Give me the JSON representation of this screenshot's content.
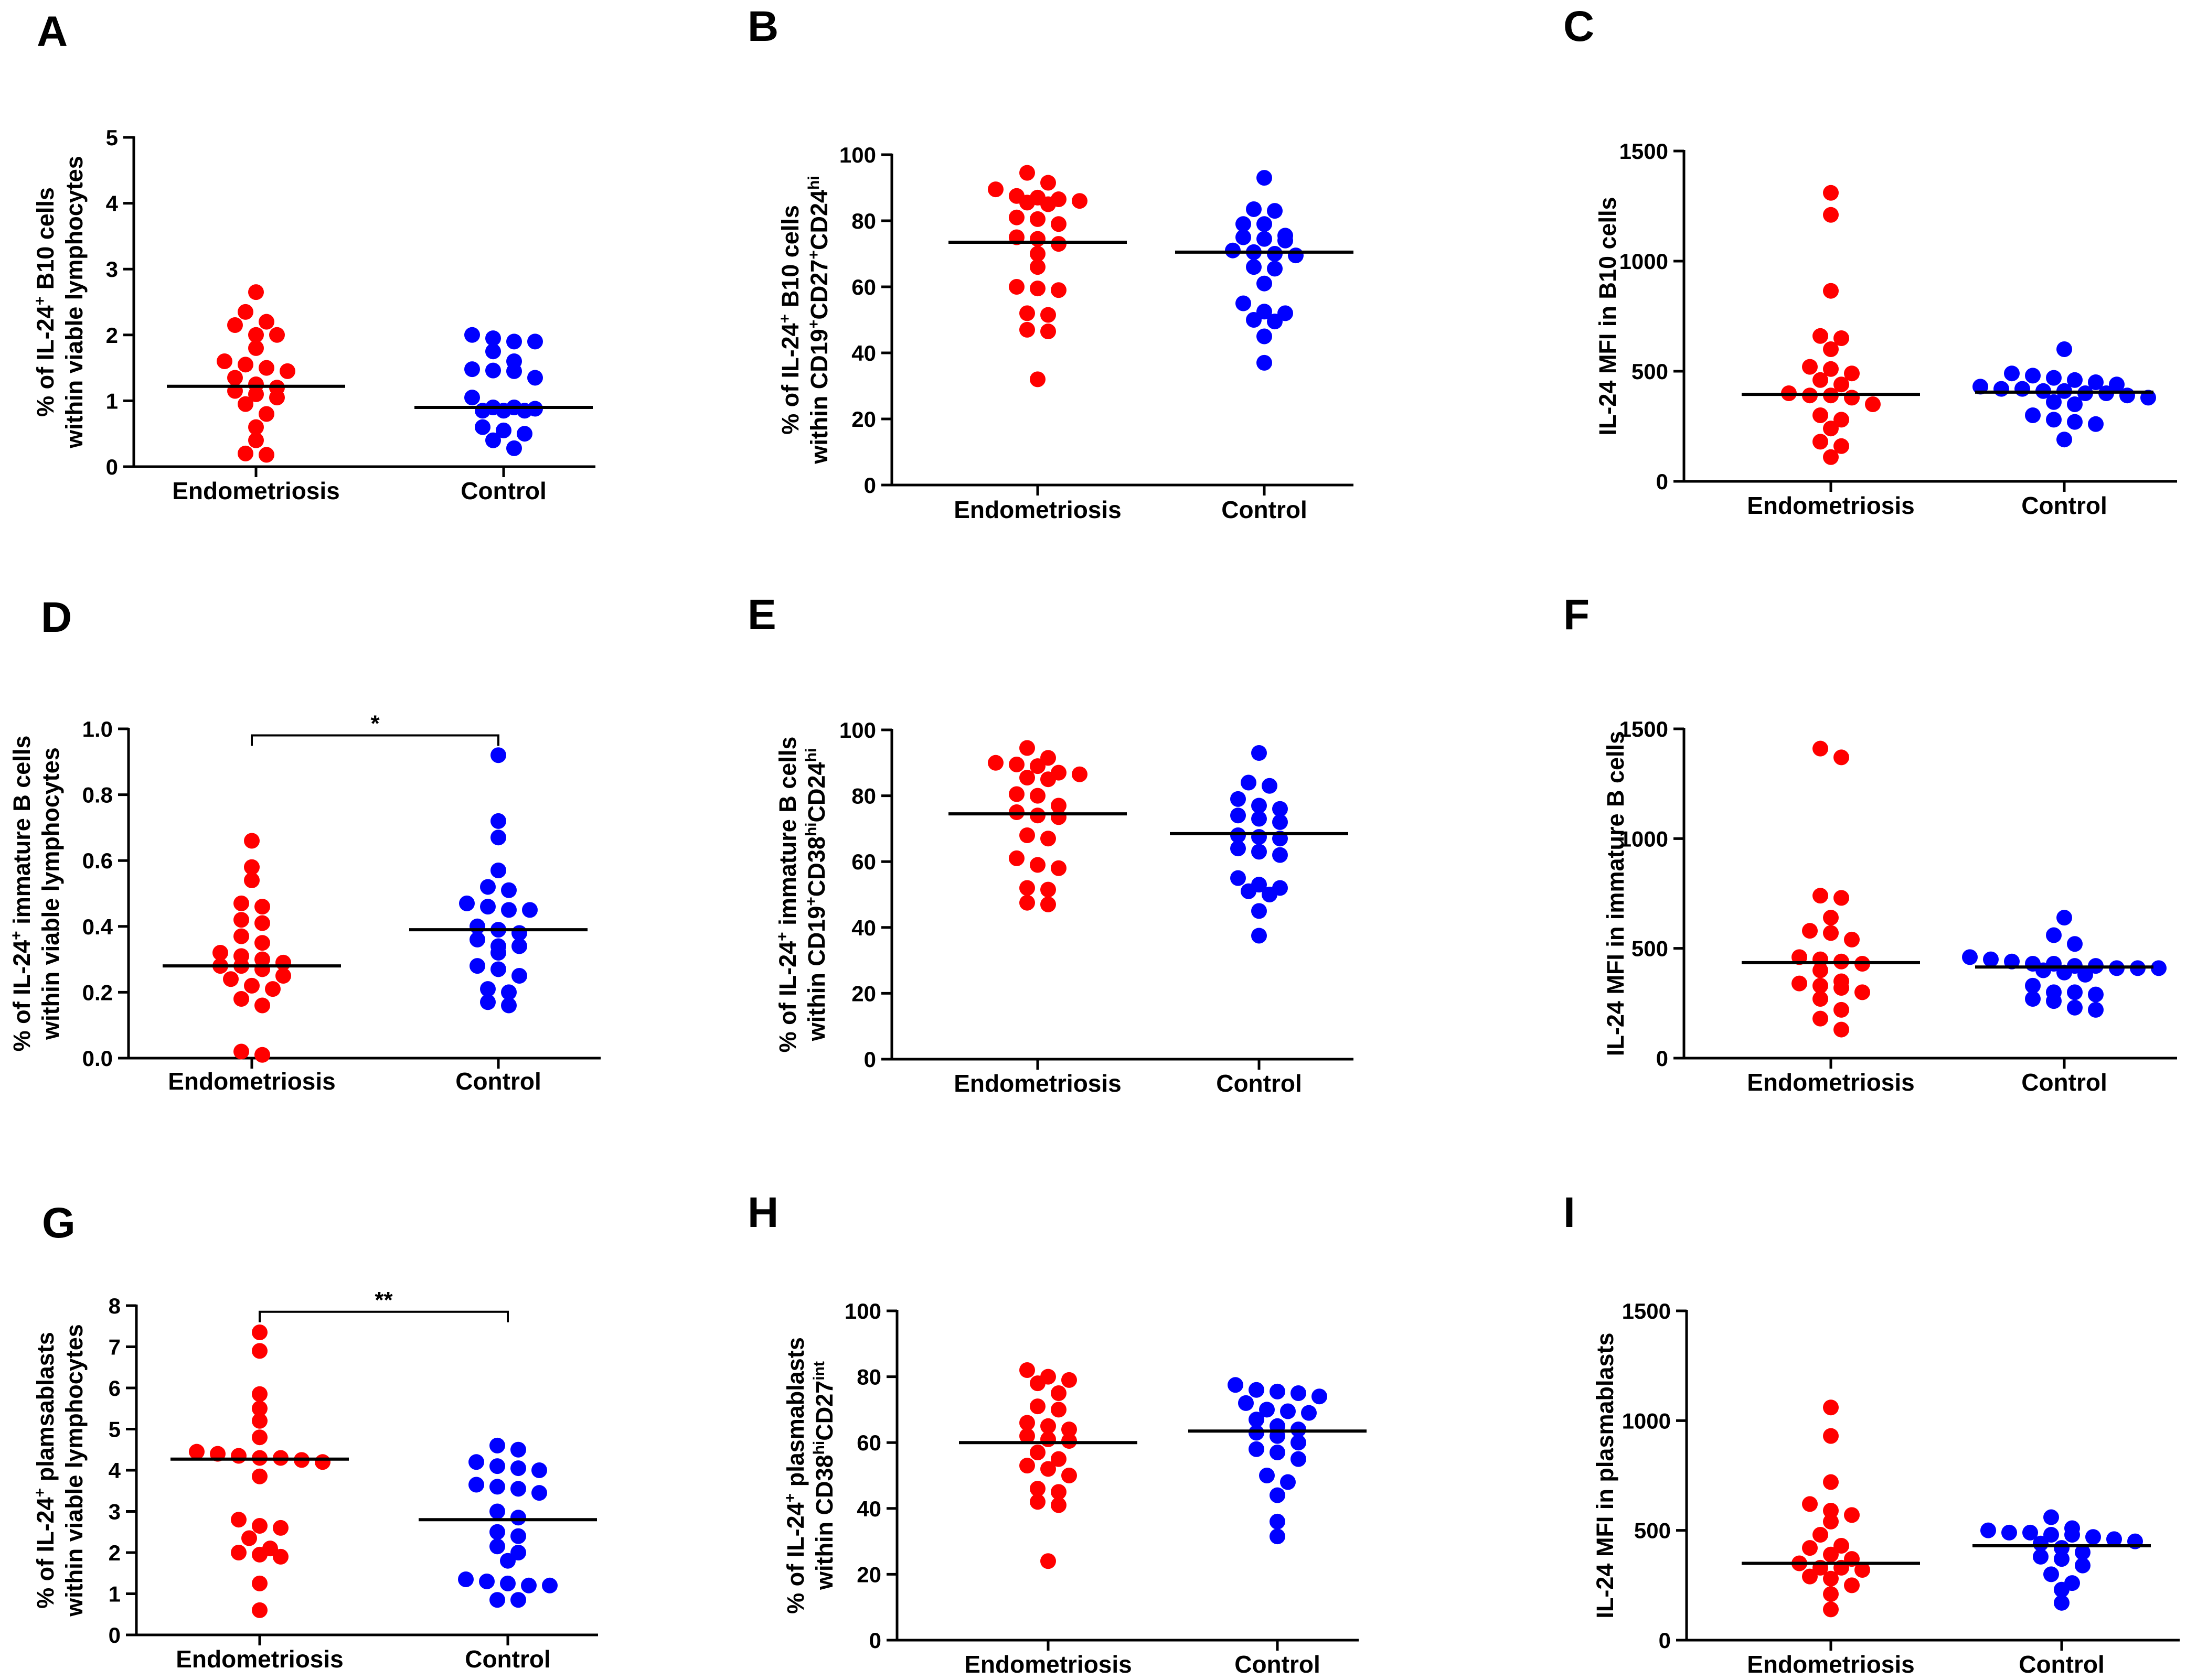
{
  "figure": {
    "background": "#ffffff"
  },
  "chart_data": [
    {
      "type": "scatter",
      "panel": "A",
      "ylabel_lines": [
        [
          {
            "t": "% of IL-24"
          },
          {
            "t": "+",
            "s": "sup"
          },
          {
            "t": " B10 cells"
          }
        ],
        [
          {
            "t": "within viable lymphocytes"
          }
        ]
      ],
      "ylim": [
        0,
        5
      ],
      "yticks": [
        0,
        1,
        2,
        3,
        4,
        5
      ],
      "ytick_labels": [
        "0",
        "1",
        "2",
        "3",
        "4",
        "5"
      ],
      "categories": [
        "Endometriosis",
        "Control"
      ],
      "series": [
        {
          "name": "Endometriosis",
          "color": "#ff0000",
          "median": 1.22,
          "values": [
            2.65,
            2.35,
            2.2,
            2.15,
            2.0,
            2.0,
            1.8,
            1.6,
            1.55,
            1.5,
            1.45,
            1.35,
            1.25,
            1.2,
            1.15,
            1.1,
            1.05,
            0.95,
            0.8,
            0.6,
            0.4,
            0.2,
            0.18
          ]
        },
        {
          "name": "Control",
          "color": "#0000ff",
          "median": 0.9,
          "values": [
            2.0,
            1.95,
            1.9,
            1.9,
            1.75,
            1.6,
            1.48,
            1.46,
            1.45,
            1.35,
            1.05,
            0.9,
            0.9,
            0.88,
            0.85,
            0.85,
            0.85,
            0.6,
            0.55,
            0.5,
            0.4,
            0.28
          ]
        }
      ],
      "significance": null
    },
    {
      "type": "scatter",
      "panel": "B",
      "ylabel_lines": [
        [
          {
            "t": "% of IL-24"
          },
          {
            "t": "+",
            "s": "sup"
          },
          {
            "t": " B10 cells"
          }
        ],
        [
          {
            "t": "within CD19"
          },
          {
            "t": "+",
            "s": "sup"
          },
          {
            "t": "CD27"
          },
          {
            "t": "+",
            "s": "sup"
          },
          {
            "t": "CD24"
          },
          {
            "t": "hi",
            "s": "sup"
          }
        ]
      ],
      "ylim": [
        0,
        100
      ],
      "yticks": [
        0,
        20,
        40,
        60,
        80,
        100
      ],
      "ytick_labels": [
        "0",
        "20",
        "40",
        "60",
        "80",
        "100"
      ],
      "categories": [
        "Endometriosis",
        "Control"
      ],
      "series": [
        {
          "name": "Endometriosis",
          "color": "#ff0000",
          "median": 73.5,
          "values": [
            94.5,
            91.5,
            89.5,
            87.5,
            87.0,
            86.5,
            86.0,
            85.5,
            85.0,
            81.0,
            80.5,
            79.0,
            75.0,
            74.5,
            73.0,
            70.0,
            66.0,
            60.0,
            59.5,
            59.0,
            52.0,
            51.5,
            47.0,
            46.5,
            32.0
          ]
        },
        {
          "name": "Control",
          "color": "#0000ff",
          "median": 70.5,
          "values": [
            93.0,
            83.5,
            83.0,
            79.0,
            79.0,
            75.5,
            75.0,
            74.5,
            74.0,
            71.0,
            70.5,
            70.0,
            69.5,
            66.0,
            65.5,
            61.0,
            55.0,
            52.5,
            52.0,
            50.0,
            49.5,
            45.0,
            37.0
          ]
        }
      ],
      "significance": null
    },
    {
      "type": "scatter",
      "panel": "C",
      "ylabel_lines": [
        [
          {
            "t": "IL-24 MFI in B10 cells"
          }
        ]
      ],
      "ylim": [
        0,
        1500
      ],
      "yticks": [
        0,
        500,
        1000,
        1500
      ],
      "ytick_labels": [
        "0",
        "500",
        "1000",
        "1500"
      ],
      "categories": [
        "Endometriosis",
        "Control"
      ],
      "series": [
        {
          "name": "Endometriosis",
          "color": "#ff0000",
          "median": 395,
          "values": [
            1310,
            1210,
            865,
            660,
            650,
            600,
            520,
            510,
            490,
            460,
            440,
            400,
            390,
            390,
            380,
            350,
            300,
            280,
            240,
            180,
            160,
            110
          ]
        },
        {
          "name": "Control",
          "color": "#0000ff",
          "median": 405,
          "values": [
            600,
            490,
            480,
            470,
            460,
            450,
            440,
            430,
            420,
            420,
            410,
            410,
            400,
            400,
            390,
            380,
            360,
            350,
            300,
            280,
            270,
            260,
            190
          ]
        }
      ],
      "significance": null
    },
    {
      "type": "scatter",
      "panel": "D",
      "ylabel_lines": [
        [
          {
            "t": "% of IL-24"
          },
          {
            "t": "+",
            "s": "sup"
          },
          {
            "t": " immature  B cells"
          }
        ],
        [
          {
            "t": "within viable lymphocytes"
          }
        ]
      ],
      "ylim": [
        0,
        1.0
      ],
      "yticks": [
        0,
        0.2,
        0.4,
        0.6,
        0.8,
        1.0
      ],
      "ytick_labels": [
        "0.0",
        "0.2",
        "0.4",
        "0.6",
        "0.8",
        "1.0"
      ],
      "categories": [
        "Endometriosis",
        "Control"
      ],
      "series": [
        {
          "name": "Endometriosis",
          "color": "#ff0000",
          "median": 0.28,
          "values": [
            0.66,
            0.58,
            0.54,
            0.47,
            0.46,
            0.42,
            0.41,
            0.37,
            0.35,
            0.32,
            0.31,
            0.3,
            0.29,
            0.28,
            0.28,
            0.27,
            0.25,
            0.24,
            0.22,
            0.21,
            0.18,
            0.16,
            0.02,
            0.01
          ]
        },
        {
          "name": "Control",
          "color": "#0000ff",
          "median": 0.39,
          "values": [
            0.92,
            0.72,
            0.67,
            0.57,
            0.52,
            0.51,
            0.47,
            0.46,
            0.45,
            0.45,
            0.4,
            0.39,
            0.38,
            0.36,
            0.34,
            0.34,
            0.32,
            0.28,
            0.27,
            0.25,
            0.21,
            0.2,
            0.17,
            0.16
          ]
        }
      ],
      "significance": {
        "label": "*",
        "level": 0.98
      }
    },
    {
      "type": "scatter",
      "panel": "E",
      "ylabel_lines": [
        [
          {
            "t": "% of IL-24"
          },
          {
            "t": "+",
            "s": "sup"
          },
          {
            "t": " immature  B cells"
          }
        ],
        [
          {
            "t": "within CD19"
          },
          {
            "t": "+",
            "s": "sup"
          },
          {
            "t": "CD38"
          },
          {
            "t": "hi",
            "s": "sup"
          },
          {
            "t": "CD24"
          },
          {
            "t": "hi",
            "s": "sup"
          }
        ]
      ],
      "ylim": [
        0,
        100
      ],
      "yticks": [
        0,
        20,
        40,
        60,
        80,
        100
      ],
      "ytick_labels": [
        "0",
        "20",
        "40",
        "60",
        "80",
        "100"
      ],
      "categories": [
        "Endometriosis",
        "Control"
      ],
      "series": [
        {
          "name": "Endometriosis",
          "color": "#ff0000",
          "median": 74.5,
          "values": [
            94.5,
            91.5,
            90.0,
            89.5,
            89.0,
            87.0,
            86.5,
            85.5,
            85.0,
            80.5,
            80.0,
            77.0,
            75.0,
            74.0,
            73.5,
            68.0,
            67.0,
            61.0,
            59.0,
            58.0,
            52.0,
            51.5,
            47.5,
            47.0
          ]
        },
        {
          "name": "Control",
          "color": "#0000ff",
          "median": 68.5,
          "values": [
            93.0,
            84.0,
            83.0,
            79.0,
            77.0,
            76.0,
            74.0,
            73.0,
            72.0,
            68.0,
            67.5,
            67.0,
            64.0,
            63.0,
            62.0,
            55.0,
            53.0,
            52.0,
            51.0,
            50.0,
            45.0,
            37.5
          ]
        }
      ],
      "significance": null
    },
    {
      "type": "scatter",
      "panel": "F",
      "ylabel_lines": [
        [
          {
            "t": "IL-24 MFI in immature  B cells"
          }
        ]
      ],
      "ylim": [
        0,
        1500
      ],
      "yticks": [
        0,
        500,
        1000,
        1500
      ],
      "ytick_labels": [
        "0",
        "500",
        "1000",
        "1500"
      ],
      "categories": [
        "Endometriosis",
        "Control"
      ],
      "series": [
        {
          "name": "Endometriosis",
          "color": "#ff0000",
          "median": 435,
          "values": [
            1410,
            1370,
            740,
            730,
            640,
            580,
            570,
            540,
            460,
            450,
            440,
            430,
            400,
            350,
            340,
            330,
            320,
            300,
            270,
            220,
            180,
            130
          ]
        },
        {
          "name": "Control",
          "color": "#0000ff",
          "median": 415,
          "values": [
            640,
            560,
            520,
            460,
            450,
            440,
            430,
            430,
            420,
            420,
            410,
            410,
            410,
            400,
            390,
            380,
            330,
            300,
            300,
            290,
            270,
            260,
            230,
            220
          ]
        }
      ],
      "significance": null
    },
    {
      "type": "scatter",
      "panel": "G",
      "ylabel_lines": [
        [
          {
            "t": "% of IL-24"
          },
          {
            "t": "+",
            "s": "sup"
          },
          {
            "t": " plamsablasts"
          }
        ],
        [
          {
            "t": "within viable lymphocytes"
          }
        ]
      ],
      "ylim": [
        0,
        8
      ],
      "yticks": [
        0,
        1,
        2,
        3,
        4,
        5,
        6,
        7,
        8
      ],
      "ytick_labels": [
        "0",
        "1",
        "2",
        "3",
        "4",
        "5",
        "6",
        "7",
        "8"
      ],
      "categories": [
        "Endometriosis",
        "Control"
      ],
      "series": [
        {
          "name": "Endometriosis",
          "color": "#ff0000",
          "median": 4.27,
          "values": [
            7.35,
            6.9,
            5.85,
            5.5,
            5.2,
            4.8,
            4.45,
            4.4,
            4.35,
            4.3,
            4.3,
            4.25,
            4.2,
            3.85,
            2.8,
            2.65,
            2.6,
            2.35,
            2.1,
            2.0,
            1.95,
            1.9,
            1.25,
            0.6
          ]
        },
        {
          "name": "Control",
          "color": "#0000ff",
          "median": 2.8,
          "values": [
            4.6,
            4.5,
            4.2,
            4.1,
            4.05,
            4.0,
            3.65,
            3.6,
            3.55,
            3.45,
            3.0,
            2.85,
            2.5,
            2.4,
            2.15,
            2.0,
            1.8,
            1.35,
            1.3,
            1.25,
            1.2,
            1.2,
            0.85,
            0.85
          ]
        }
      ],
      "significance": {
        "label": "**",
        "level": 7.85
      }
    },
    {
      "type": "scatter",
      "panel": "H",
      "ylabel_lines": [
        [
          {
            "t": "% of IL-24"
          },
          {
            "t": "+",
            "s": "sup"
          },
          {
            "t": " plasmablasts"
          }
        ],
        [
          {
            "t": "within CD38"
          },
          {
            "t": "hi",
            "s": "sup"
          },
          {
            "t": "CD27"
          },
          {
            "t": "int",
            "s": "sup"
          }
        ]
      ],
      "ylim": [
        0,
        100
      ],
      "yticks": [
        0,
        20,
        40,
        60,
        80,
        100
      ],
      "ytick_labels": [
        "0",
        "20",
        "40",
        "60",
        "80",
        "100"
      ],
      "categories": [
        "Endometriosis",
        "Control"
      ],
      "series": [
        {
          "name": "Endometriosis",
          "color": "#ff0000",
          "median": 60,
          "values": [
            82.0,
            80.0,
            79.0,
            78.0,
            75.0,
            71.0,
            70.0,
            66.0,
            65.0,
            64.0,
            62.0,
            61.0,
            60.5,
            57.0,
            55.0,
            53.0,
            52.0,
            50.0,
            46.0,
            45.0,
            42.0,
            41.0,
            24.0
          ]
        },
        {
          "name": "Control",
          "color": "#0000ff",
          "median": 63.5,
          "values": [
            77.5,
            76.0,
            75.5,
            75.0,
            74.0,
            72.0,
            70.0,
            69.5,
            69.0,
            67.0,
            65.0,
            64.0,
            63.0,
            62.0,
            60.0,
            58.0,
            57.0,
            55.0,
            50.0,
            48.0,
            44.0,
            36.0,
            31.5
          ]
        }
      ],
      "significance": null
    },
    {
      "type": "scatter",
      "panel": "I",
      "ylabel_lines": [
        [
          {
            "t": "IL-24 MFI in plasmablasts"
          }
        ]
      ],
      "ylim": [
        0,
        1500
      ],
      "yticks": [
        0,
        500,
        1000,
        1500
      ],
      "ytick_labels": [
        "0",
        "500",
        "1000",
        "1500"
      ],
      "categories": [
        "Endometriosis",
        "Control"
      ],
      "series": [
        {
          "name": "Endometriosis",
          "color": "#ff0000",
          "median": 350,
          "values": [
            1060,
            930,
            720,
            620,
            590,
            570,
            540,
            480,
            430,
            420,
            390,
            370,
            350,
            330,
            330,
            320,
            290,
            280,
            250,
            210,
            140
          ]
        },
        {
          "name": "Control",
          "color": "#0000ff",
          "median": 430,
          "values": [
            560,
            510,
            500,
            490,
            490,
            480,
            480,
            470,
            460,
            450,
            440,
            420,
            400,
            380,
            370,
            340,
            300,
            260,
            230,
            170
          ]
        }
      ],
      "significance": null
    }
  ]
}
